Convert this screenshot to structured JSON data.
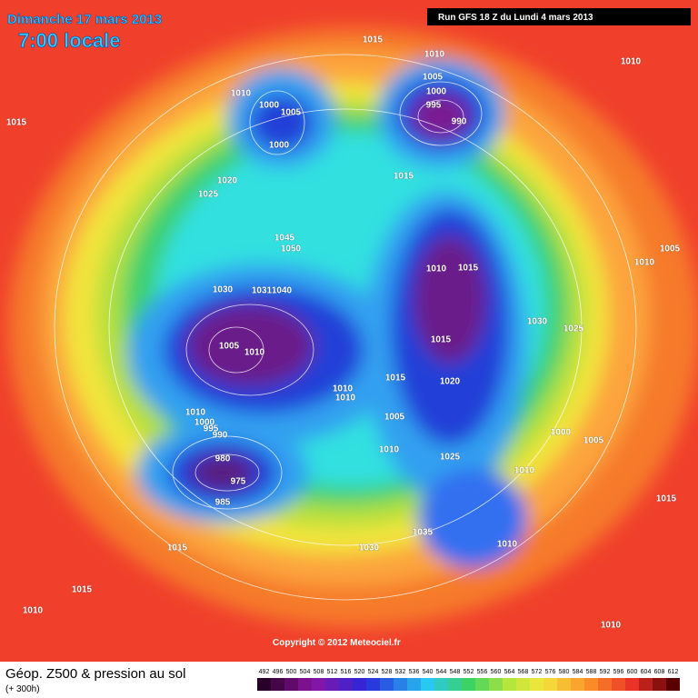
{
  "header": {
    "date": "Dimanche 17 mars 2013",
    "time": "7:00 locale",
    "run": "Run GFS 18 Z du Lundi 4 mars 2013"
  },
  "isobar_labels": [
    1015,
    1010,
    1010,
    1005,
    1000,
    995,
    990,
    1010,
    1000,
    1005,
    1000,
    1015,
    1015,
    1020,
    1025,
    1045,
    1050,
    1005,
    1010,
    1010,
    1015,
    1030,
    1031,
    1040,
    1030,
    1025,
    1005,
    1010,
    1015,
    1015,
    1020,
    1010,
    1010,
    1010,
    1000,
    995,
    990,
    1005,
    1000,
    1005,
    1010,
    1025,
    980,
    975,
    985,
    1010,
    1015,
    1035,
    1010,
    1030,
    1015,
    1015,
    1010,
    1010
  ],
  "copyright": "Copyright © 2012 Meteociel.fr",
  "footer": {
    "title": "Géop. Z500 & pression au sol",
    "lead": "(+ 300h)"
  },
  "legend": {
    "values": [
      492,
      496,
      500,
      504,
      508,
      512,
      516,
      520,
      524,
      528,
      532,
      536,
      540,
      544,
      548,
      552,
      556,
      560,
      564,
      568,
      572,
      576,
      580,
      584,
      588,
      592,
      596,
      600,
      604,
      608,
      612
    ]
  }
}
